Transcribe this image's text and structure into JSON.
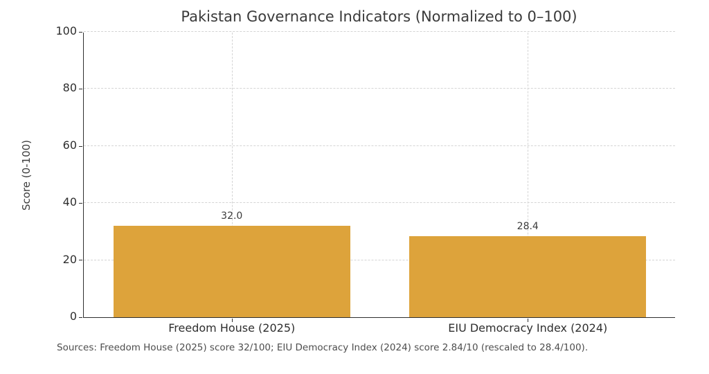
{
  "chart_data": {
    "type": "bar",
    "title": "Pakistan Governance Indicators (Normalized to 0–100)",
    "categories": [
      "Freedom House (2025)",
      "EIU Democracy Index (2024)"
    ],
    "values": [
      32.0,
      28.4
    ],
    "value_labels": [
      "32.0",
      "28.4"
    ],
    "xlabel": "",
    "ylabel": "Score (0-100)",
    "ylim": [
      0,
      100
    ],
    "yticks": [
      0,
      20,
      40,
      60,
      80,
      100
    ],
    "grid": "both-axes, dashed, light gray, drawn behind bars",
    "legend_position": "none",
    "bar_color": "#DDA33B",
    "annotation": "Sources: Freedom House (2025) score 32/100; EIU Democracy Index (2024) score 2.84/10 (rescaled to 28.4/100)."
  },
  "colors": {
    "bar": "#DDA33B",
    "grid": "#d4d4d4",
    "spine": "#2e2e2e",
    "title_text": "#3a3a3a",
    "tick_text": "#2e2e2e",
    "note_text": "#4d4d4d",
    "background": "#ffffff"
  }
}
